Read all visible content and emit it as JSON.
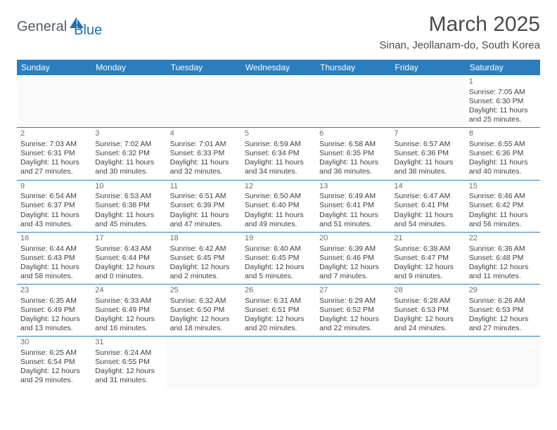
{
  "logo": {
    "part1": "General",
    "part2": "Blue"
  },
  "title": "March 2025",
  "location": "Sinan, Jeollanam-do, South Korea",
  "colors": {
    "header_bg": "#2b7dbd",
    "header_fg": "#ffffff",
    "cell_border": "#2b7dbd",
    "text": "#3f3f3f",
    "daynum": "#6e6e6e",
    "logo_grey": "#555d66",
    "logo_blue": "#1f6fb2"
  },
  "weekdays": [
    "Sunday",
    "Monday",
    "Tuesday",
    "Wednesday",
    "Thursday",
    "Friday",
    "Saturday"
  ],
  "cells": [
    [
      {},
      {},
      {},
      {},
      {},
      {},
      {
        "n": "1",
        "sr": "Sunrise: 7:05 AM",
        "ss": "Sunset: 6:30 PM",
        "d1": "Daylight: 11 hours",
        "d2": "and 25 minutes."
      }
    ],
    [
      {
        "n": "2",
        "sr": "Sunrise: 7:03 AM",
        "ss": "Sunset: 6:31 PM",
        "d1": "Daylight: 11 hours",
        "d2": "and 27 minutes."
      },
      {
        "n": "3",
        "sr": "Sunrise: 7:02 AM",
        "ss": "Sunset: 6:32 PM",
        "d1": "Daylight: 11 hours",
        "d2": "and 30 minutes."
      },
      {
        "n": "4",
        "sr": "Sunrise: 7:01 AM",
        "ss": "Sunset: 6:33 PM",
        "d1": "Daylight: 11 hours",
        "d2": "and 32 minutes."
      },
      {
        "n": "5",
        "sr": "Sunrise: 6:59 AM",
        "ss": "Sunset: 6:34 PM",
        "d1": "Daylight: 11 hours",
        "d2": "and 34 minutes."
      },
      {
        "n": "6",
        "sr": "Sunrise: 6:58 AM",
        "ss": "Sunset: 6:35 PM",
        "d1": "Daylight: 11 hours",
        "d2": "and 36 minutes."
      },
      {
        "n": "7",
        "sr": "Sunrise: 6:57 AM",
        "ss": "Sunset: 6:36 PM",
        "d1": "Daylight: 11 hours",
        "d2": "and 38 minutes."
      },
      {
        "n": "8",
        "sr": "Sunrise: 6:55 AM",
        "ss": "Sunset: 6:36 PM",
        "d1": "Daylight: 11 hours",
        "d2": "and 40 minutes."
      }
    ],
    [
      {
        "n": "9",
        "sr": "Sunrise: 6:54 AM",
        "ss": "Sunset: 6:37 PM",
        "d1": "Daylight: 11 hours",
        "d2": "and 43 minutes."
      },
      {
        "n": "10",
        "sr": "Sunrise: 6:53 AM",
        "ss": "Sunset: 6:38 PM",
        "d1": "Daylight: 11 hours",
        "d2": "and 45 minutes."
      },
      {
        "n": "11",
        "sr": "Sunrise: 6:51 AM",
        "ss": "Sunset: 6:39 PM",
        "d1": "Daylight: 11 hours",
        "d2": "and 47 minutes."
      },
      {
        "n": "12",
        "sr": "Sunrise: 6:50 AM",
        "ss": "Sunset: 6:40 PM",
        "d1": "Daylight: 11 hours",
        "d2": "and 49 minutes."
      },
      {
        "n": "13",
        "sr": "Sunrise: 6:49 AM",
        "ss": "Sunset: 6:41 PM",
        "d1": "Daylight: 11 hours",
        "d2": "and 51 minutes."
      },
      {
        "n": "14",
        "sr": "Sunrise: 6:47 AM",
        "ss": "Sunset: 6:41 PM",
        "d1": "Daylight: 11 hours",
        "d2": "and 54 minutes."
      },
      {
        "n": "15",
        "sr": "Sunrise: 6:46 AM",
        "ss": "Sunset: 6:42 PM",
        "d1": "Daylight: 11 hours",
        "d2": "and 56 minutes."
      }
    ],
    [
      {
        "n": "16",
        "sr": "Sunrise: 6:44 AM",
        "ss": "Sunset: 6:43 PM",
        "d1": "Daylight: 11 hours",
        "d2": "and 58 minutes."
      },
      {
        "n": "17",
        "sr": "Sunrise: 6:43 AM",
        "ss": "Sunset: 6:44 PM",
        "d1": "Daylight: 12 hours",
        "d2": "and 0 minutes."
      },
      {
        "n": "18",
        "sr": "Sunrise: 6:42 AM",
        "ss": "Sunset: 6:45 PM",
        "d1": "Daylight: 12 hours",
        "d2": "and 2 minutes."
      },
      {
        "n": "19",
        "sr": "Sunrise: 6:40 AM",
        "ss": "Sunset: 6:45 PM",
        "d1": "Daylight: 12 hours",
        "d2": "and 5 minutes."
      },
      {
        "n": "20",
        "sr": "Sunrise: 6:39 AM",
        "ss": "Sunset: 6:46 PM",
        "d1": "Daylight: 12 hours",
        "d2": "and 7 minutes."
      },
      {
        "n": "21",
        "sr": "Sunrise: 6:38 AM",
        "ss": "Sunset: 6:47 PM",
        "d1": "Daylight: 12 hours",
        "d2": "and 9 minutes."
      },
      {
        "n": "22",
        "sr": "Sunrise: 6:36 AM",
        "ss": "Sunset: 6:48 PM",
        "d1": "Daylight: 12 hours",
        "d2": "and 11 minutes."
      }
    ],
    [
      {
        "n": "23",
        "sr": "Sunrise: 6:35 AM",
        "ss": "Sunset: 6:49 PM",
        "d1": "Daylight: 12 hours",
        "d2": "and 13 minutes."
      },
      {
        "n": "24",
        "sr": "Sunrise: 6:33 AM",
        "ss": "Sunset: 6:49 PM",
        "d1": "Daylight: 12 hours",
        "d2": "and 16 minutes."
      },
      {
        "n": "25",
        "sr": "Sunrise: 6:32 AM",
        "ss": "Sunset: 6:50 PM",
        "d1": "Daylight: 12 hours",
        "d2": "and 18 minutes."
      },
      {
        "n": "26",
        "sr": "Sunrise: 6:31 AM",
        "ss": "Sunset: 6:51 PM",
        "d1": "Daylight: 12 hours",
        "d2": "and 20 minutes."
      },
      {
        "n": "27",
        "sr": "Sunrise: 6:29 AM",
        "ss": "Sunset: 6:52 PM",
        "d1": "Daylight: 12 hours",
        "d2": "and 22 minutes."
      },
      {
        "n": "28",
        "sr": "Sunrise: 6:28 AM",
        "ss": "Sunset: 6:53 PM",
        "d1": "Daylight: 12 hours",
        "d2": "and 24 minutes."
      },
      {
        "n": "29",
        "sr": "Sunrise: 6:26 AM",
        "ss": "Sunset: 6:53 PM",
        "d1": "Daylight: 12 hours",
        "d2": "and 27 minutes."
      }
    ],
    [
      {
        "n": "30",
        "sr": "Sunrise: 6:25 AM",
        "ss": "Sunset: 6:54 PM",
        "d1": "Daylight: 12 hours",
        "d2": "and 29 minutes."
      },
      {
        "n": "31",
        "sr": "Sunrise: 6:24 AM",
        "ss": "Sunset: 6:55 PM",
        "d1": "Daylight: 12 hours",
        "d2": "and 31 minutes."
      },
      {},
      {},
      {},
      {},
      {}
    ]
  ]
}
